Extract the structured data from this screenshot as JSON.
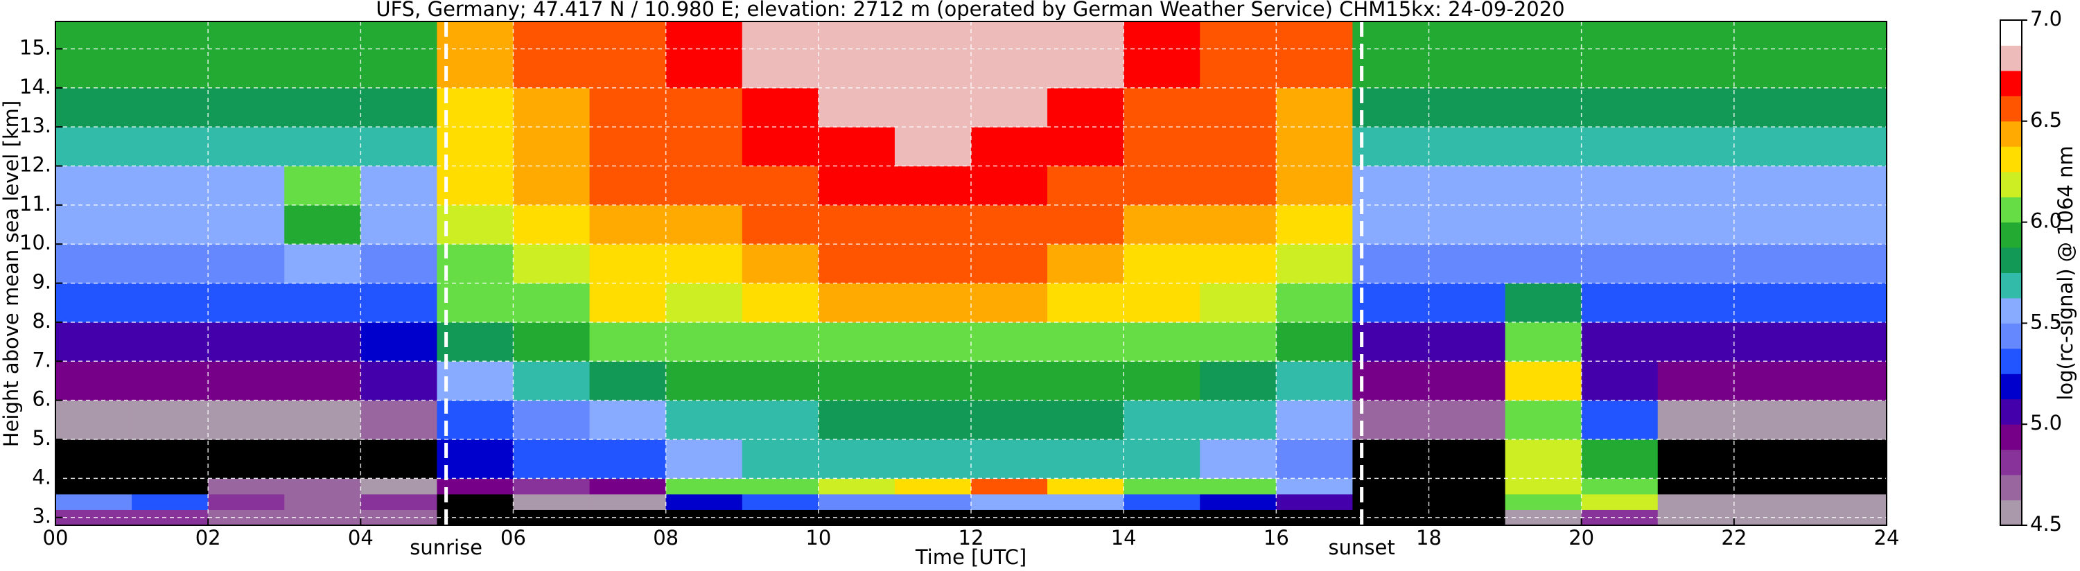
{
  "chart_data": {
    "type": "heatmap",
    "title": "UFS, Germany; 47.417 N / 10.980 E; elevation: 2712 m  (operated by German Weather Service)    CHM15kx: 24-09-2020",
    "x_label": "Time [UTC]",
    "y_label": "Height above mean sea level [km]",
    "colorbar_label": "log(rc-signal) @ 1064 nm",
    "xlim": [
      0,
      24
    ],
    "ylim": [
      2.8,
      15.7
    ],
    "xticks": [
      {
        "value": 0,
        "label": "00"
      },
      {
        "value": 2,
        "label": "02"
      },
      {
        "value": 4,
        "label": "04"
      },
      {
        "value": 6,
        "label": "06"
      },
      {
        "value": 8,
        "label": "08"
      },
      10,
      12,
      14,
      16,
      18,
      20,
      22,
      24
    ],
    "yticks": [
      {
        "value": 3,
        "label": "3."
      },
      {
        "value": 4,
        "label": "4."
      },
      {
        "value": 5,
        "label": "5."
      },
      {
        "value": 6,
        "label": "6."
      },
      {
        "value": 7,
        "label": "7."
      },
      {
        "value": 8,
        "label": "8."
      },
      {
        "value": 9,
        "label": "9."
      },
      {
        "value": 10,
        "label": "10."
      },
      {
        "value": 11,
        "label": "11."
      },
      {
        "value": 12,
        "label": "12."
      },
      {
        "value": 13,
        "label": "13."
      },
      {
        "value": 14,
        "label": "14."
      },
      {
        "value": 15,
        "label": "15."
      }
    ],
    "grid": true,
    "x_bins": [
      0,
      1,
      2,
      3,
      4,
      5,
      6,
      7,
      8,
      9,
      10,
      11,
      12,
      13,
      14,
      15,
      16,
      17,
      18,
      19,
      20,
      21,
      22,
      23,
      24
    ],
    "y_bins": [
      2.8,
      3.2,
      3.6,
      4.0,
      5,
      6,
      7,
      8,
      9,
      10,
      11,
      12,
      13,
      14,
      15.7
    ],
    "z": [
      [
        4.8,
        4.8,
        4.7,
        4.7,
        4.7,
        4.4,
        4.4,
        4.4,
        4.4,
        4.4,
        4.4,
        4.4,
        4.4,
        4.4,
        4.4,
        4.4,
        4.4,
        4.4,
        4.4,
        4.6,
        4.8,
        4.6,
        4.5,
        4.6
      ],
      [
        5.4,
        5.3,
        4.8,
        4.7,
        4.8,
        4.4,
        4.6,
        4.6,
        5.2,
        5.3,
        5.4,
        5.4,
        5.6,
        5.5,
        5.3,
        5.2,
        5.0,
        4.4,
        4.4,
        6.1,
        6.2,
        4.6,
        4.5,
        4.6
      ],
      [
        4.4,
        4.4,
        4.7,
        4.7,
        4.6,
        4.9,
        4.8,
        4.9,
        6.0,
        6.1,
        6.2,
        6.3,
        6.5,
        6.3,
        6.1,
        6.0,
        5.6,
        4.4,
        4.4,
        6.2,
        6.1,
        4.4,
        4.4,
        4.4
      ],
      [
        4.4,
        4.4,
        4.4,
        4.4,
        4.4,
        5.2,
        5.3,
        5.3,
        5.6,
        5.7,
        5.7,
        5.7,
        5.7,
        5.7,
        5.7,
        5.6,
        5.4,
        4.4,
        4.4,
        6.2,
        5.9,
        4.4,
        4.4,
        4.4
      ],
      [
        4.6,
        4.6,
        4.6,
        4.6,
        4.7,
        5.3,
        5.4,
        5.5,
        5.7,
        5.7,
        5.8,
        5.8,
        5.8,
        5.8,
        5.7,
        5.7,
        5.5,
        4.7,
        4.7,
        6.1,
        5.3,
        4.6,
        4.6,
        4.6
      ],
      [
        4.9,
        4.9,
        4.9,
        4.9,
        5.0,
        5.6,
        5.7,
        5.8,
        5.9,
        5.9,
        5.9,
        5.9,
        5.9,
        5.9,
        5.9,
        5.8,
        5.7,
        4.9,
        4.9,
        6.3,
        5.0,
        4.9,
        4.9,
        4.9
      ],
      [
        5.1,
        5.1,
        5.1,
        5.1,
        5.2,
        5.8,
        5.9,
        6.0,
        6.0,
        6.1,
        6.1,
        6.1,
        6.1,
        6.1,
        6.0,
        6.0,
        5.9,
        5.1,
        5.1,
        6.0,
        5.1,
        5.1,
        5.1,
        5.1
      ],
      [
        5.3,
        5.3,
        5.3,
        5.3,
        5.3,
        6.0,
        6.1,
        6.3,
        6.2,
        6.3,
        6.4,
        6.4,
        6.4,
        6.3,
        6.3,
        6.2,
        6.1,
        5.3,
        5.3,
        5.8,
        5.3,
        5.3,
        5.3,
        5.3
      ],
      [
        5.4,
        5.4,
        5.4,
        5.5,
        5.4,
        6.1,
        6.2,
        6.3,
        6.3,
        6.4,
        6.5,
        6.5,
        6.5,
        6.4,
        6.3,
        6.3,
        6.2,
        5.4,
        5.4,
        5.4,
        5.4,
        5.4,
        5.4,
        5.4
      ],
      [
        5.5,
        5.5,
        5.5,
        5.9,
        5.5,
        6.2,
        6.3,
        6.4,
        6.4,
        6.5,
        6.6,
        6.6,
        6.6,
        6.5,
        6.4,
        6.4,
        6.3,
        5.5,
        5.5,
        5.5,
        5.5,
        5.5,
        5.5,
        5.5
      ],
      [
        5.6,
        5.6,
        5.6,
        6.1,
        5.6,
        6.3,
        6.4,
        6.5,
        6.5,
        6.6,
        6.7,
        6.7,
        6.7,
        6.6,
        6.5,
        6.5,
        6.4,
        5.6,
        5.6,
        5.6,
        5.6,
        5.6,
        5.6,
        5.6
      ],
      [
        5.7,
        5.7,
        5.7,
        5.7,
        5.7,
        6.3,
        6.4,
        6.5,
        6.6,
        6.7,
        6.7,
        6.8,
        6.7,
        6.7,
        6.6,
        6.5,
        6.4,
        5.7,
        5.7,
        5.7,
        5.7,
        5.7,
        5.7,
        5.7
      ],
      [
        5.8,
        5.8,
        5.8,
        5.8,
        5.8,
        6.3,
        6.4,
        6.5,
        6.6,
        6.7,
        6.8,
        6.8,
        6.8,
        6.7,
        6.6,
        6.5,
        6.4,
        5.8,
        5.8,
        5.8,
        5.8,
        5.8,
        5.8,
        5.8
      ],
      [
        5.9,
        5.9,
        5.9,
        5.9,
        5.9,
        6.4,
        6.5,
        6.6,
        6.7,
        6.8,
        6.8,
        6.8,
        6.8,
        6.8,
        6.7,
        6.6,
        6.5,
        5.9,
        5.9,
        5.9,
        5.9,
        5.9,
        5.9,
        5.9
      ]
    ],
    "clim": [
      4.5,
      7.0
    ],
    "cticks": [
      4.5,
      {
        "value": 5,
        "label": "5.0"
      },
      5.5,
      {
        "value": 6,
        "label": "6.0"
      },
      6.5,
      {
        "value": 7,
        "label": "7.0"
      }
    ],
    "colormap": [
      "#aa99aa",
      "#9966a0",
      "#883399",
      "#770088",
      "#4400aa",
      "#0000cc",
      "#2255ff",
      "#6688ff",
      "#88aaff",
      "#33bbaa",
      "#119955",
      "#22aa33",
      "#66dd44",
      "#ccee22",
      "#ffdd00",
      "#ffaa00",
      "#ff5500",
      "#ff0000",
      "#eebbbb",
      "#ffffff"
    ],
    "under_color": "#000000",
    "annotations": [
      {
        "label": "sunrise",
        "x": 5.12
      },
      {
        "label": "sunset",
        "x": 17.12
      }
    ]
  }
}
